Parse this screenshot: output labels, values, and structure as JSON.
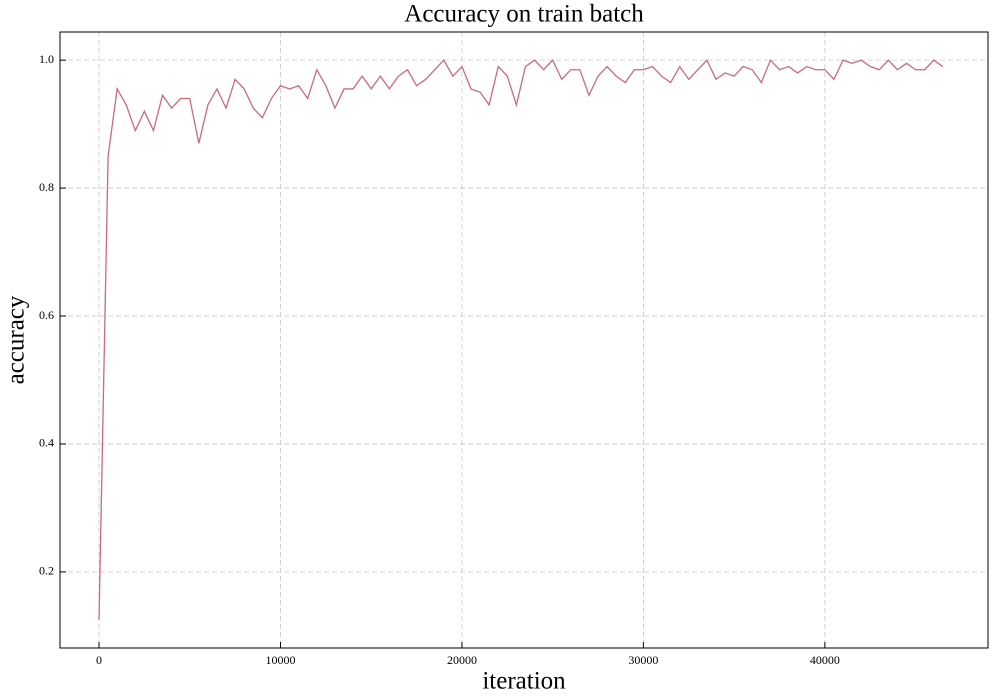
{
  "chart_data": {
    "type": "line",
    "title": "Accuracy on train batch",
    "x_label": "iteration",
    "y_label": "accuracy",
    "x": [
      0,
      500,
      1000,
      1500,
      2000,
      2500,
      3000,
      3500,
      4000,
      4500,
      5000,
      5500,
      6000,
      6500,
      7000,
      7500,
      8000,
      8500,
      9000,
      9500,
      10000,
      10500,
      11000,
      11500,
      12000,
      12500,
      13000,
      13500,
      14000,
      14500,
      15000,
      15500,
      16000,
      16500,
      17000,
      17500,
      18000,
      18500,
      19000,
      19500,
      20000,
      20500,
      21000,
      21500,
      22000,
      22500,
      23000,
      23500,
      24000,
      24500,
      25000,
      25500,
      26000,
      26500,
      27000,
      27500,
      28000,
      28500,
      29000,
      29500,
      30000,
      30500,
      31000,
      31500,
      32000,
      32500,
      33000,
      33500,
      34000,
      34500,
      35000,
      35500,
      36000,
      36500,
      37000,
      37500,
      38000,
      38500,
      39000,
      39500,
      40000,
      40500,
      41000,
      41500,
      42000,
      42500,
      43000,
      43500,
      44000,
      44500,
      45000,
      45500,
      46000,
      46500
    ],
    "series": [
      {
        "name": "accuracy",
        "color": "#c96a80",
        "values": [
          0.125,
          0.85,
          0.955,
          0.93,
          0.89,
          0.92,
          0.89,
          0.945,
          0.925,
          0.94,
          0.94,
          0.87,
          0.93,
          0.955,
          0.925,
          0.97,
          0.955,
          0.925,
          0.91,
          0.94,
          0.96,
          0.955,
          0.96,
          0.94,
          0.985,
          0.96,
          0.925,
          0.955,
          0.955,
          0.975,
          0.955,
          0.975,
          0.955,
          0.975,
          0.985,
          0.96,
          0.97,
          0.985,
          1.0,
          0.975,
          0.99,
          0.955,
          0.95,
          0.93,
          0.99,
          0.975,
          0.93,
          0.99,
          1.0,
          0.985,
          1.0,
          0.97,
          0.985,
          0.985,
          0.945,
          0.975,
          0.99,
          0.975,
          0.965,
          0.985,
          0.985,
          0.99,
          0.975,
          0.965,
          0.99,
          0.97,
          0.985,
          1.0,
          0.97,
          0.98,
          0.975,
          0.99,
          0.985,
          0.965,
          1.0,
          0.985,
          0.99,
          0.98,
          0.99,
          0.985,
          0.985,
          0.97,
          1.0,
          0.995,
          1.0,
          0.99,
          0.985,
          1.0,
          0.985,
          0.995,
          0.985,
          0.985,
          1.0,
          0.99
        ]
      }
    ],
    "xlim": [
      -2150,
      48990
    ],
    "ylim": [
      0.081,
      1.044
    ],
    "xticks": [
      0,
      10000,
      20000,
      30000,
      40000
    ],
    "yticks": [
      0.2,
      0.4,
      0.6,
      0.8,
      {
        "value": 1,
        "label": "1.0"
      }
    ],
    "grid": true
  }
}
